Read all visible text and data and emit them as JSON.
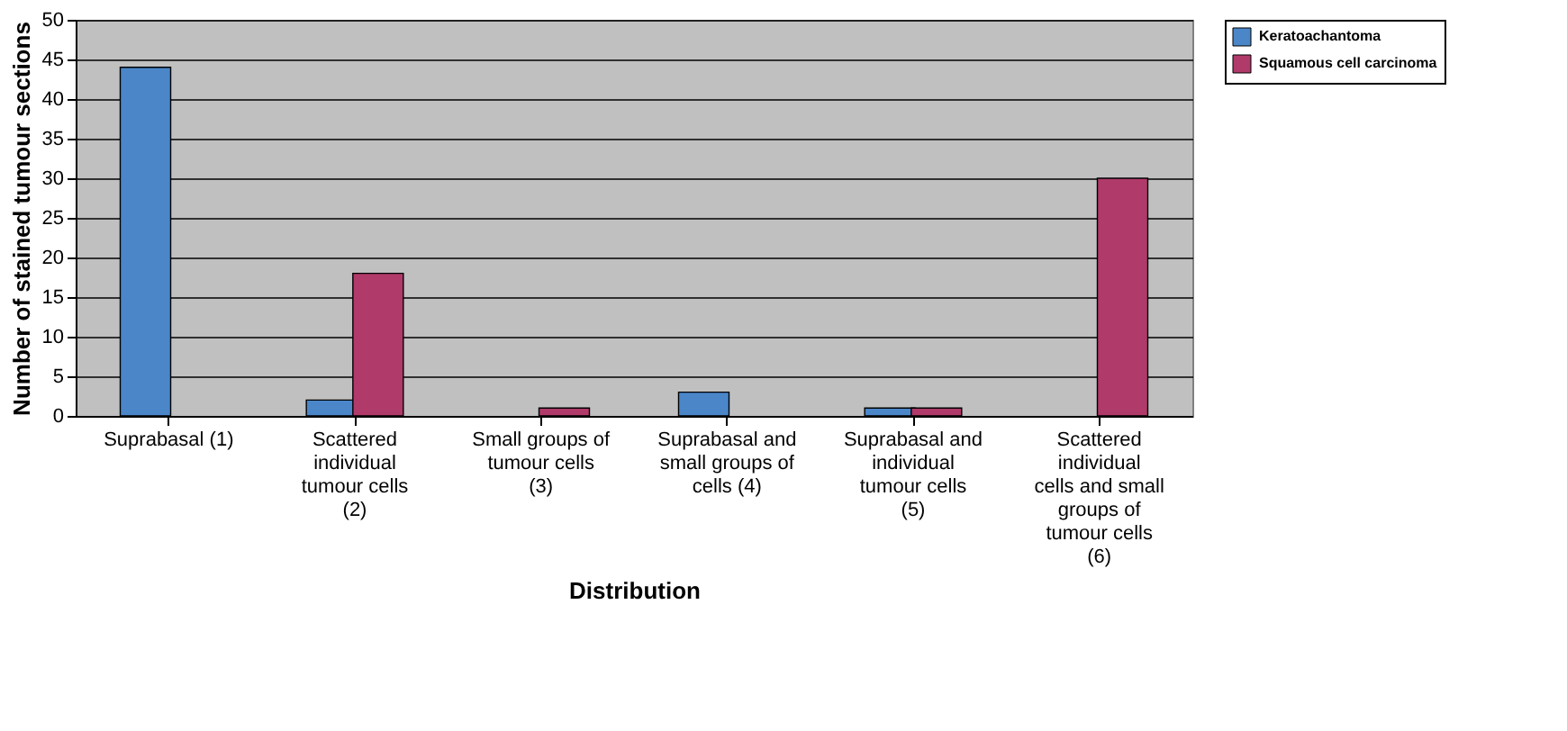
{
  "chart_data": {
    "type": "bar",
    "xlabel": "Distribution",
    "ylabel": "Number of stained tumour sections",
    "categories": [
      "Suprabasal (1)",
      "Scattered individual tumour cells (2)",
      "Small groups of tumour cells (3)",
      "Suprabasal and small groups of cells (4)",
      "Suprabasal and individual tumour cells (5)",
      "Scattered individual cells and small groups of tumour cells (6)"
    ],
    "series": [
      {
        "name": "Keratoachantoma",
        "color": "#4a86c8",
        "values": [
          44,
          2,
          0,
          3,
          1,
          0
        ]
      },
      {
        "name": "Squamous cell carcinoma",
        "color": "#b03a6a",
        "values": [
          0,
          18,
          1,
          0,
          1,
          30
        ]
      }
    ],
    "ylim": [
      0,
      50
    ],
    "yticks": [
      0,
      5,
      10,
      15,
      20,
      25,
      30,
      35,
      40,
      45,
      50
    ],
    "grid": "y",
    "legend": "right"
  }
}
